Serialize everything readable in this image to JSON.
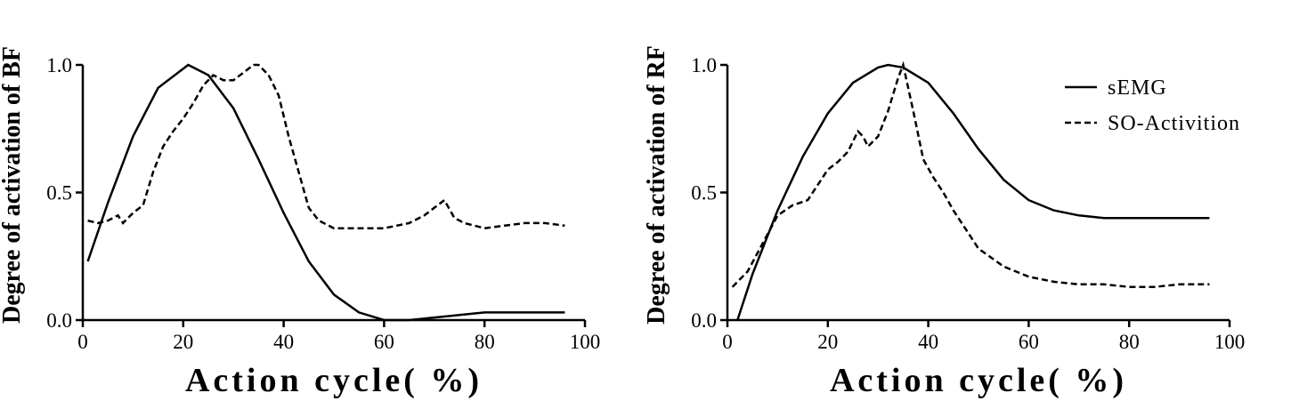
{
  "chart_data": [
    {
      "type": "line",
      "xlabel": "Action cycle( %)",
      "ylabel": "Degree of activation of BF",
      "xlim": [
        0,
        100
      ],
      "ylim": [
        0,
        1
      ],
      "x_ticks": [
        "0",
        "20",
        "40",
        "60",
        "80",
        "100"
      ],
      "y_ticks": [
        "0.0",
        "0.5",
        "1.0"
      ],
      "series": [
        {
          "name": "sEMG",
          "style": "solid",
          "x": [
            1,
            5,
            10,
            15,
            21,
            25,
            30,
            35,
            40,
            45,
            50,
            55,
            60,
            65,
            70,
            75,
            80,
            85,
            90,
            96
          ],
          "y": [
            0.23,
            0.46,
            0.72,
            0.91,
            1.0,
            0.96,
            0.83,
            0.63,
            0.42,
            0.23,
            0.1,
            0.03,
            0.0,
            0.0,
            0.01,
            0.02,
            0.03,
            0.03,
            0.03,
            0.03
          ]
        },
        {
          "name": "SO-Activition",
          "style": "dashed",
          "x": [
            1,
            3,
            5,
            7,
            8,
            10,
            12,
            14,
            16,
            18,
            20,
            22,
            24,
            26,
            28,
            30,
            32,
            34,
            35,
            37,
            39,
            41,
            43,
            45,
            47,
            50,
            55,
            60,
            65,
            68,
            72,
            74,
            76,
            80,
            84,
            88,
            92,
            96
          ],
          "y": [
            0.39,
            0.38,
            0.39,
            0.41,
            0.38,
            0.42,
            0.45,
            0.58,
            0.68,
            0.74,
            0.79,
            0.85,
            0.92,
            0.96,
            0.94,
            0.94,
            0.97,
            1.0,
            1.0,
            0.96,
            0.88,
            0.72,
            0.58,
            0.44,
            0.39,
            0.36,
            0.36,
            0.36,
            0.38,
            0.41,
            0.47,
            0.4,
            0.38,
            0.36,
            0.37,
            0.38,
            0.38,
            0.37
          ]
        }
      ]
    },
    {
      "type": "line",
      "xlabel": "Action cycle( %)",
      "ylabel": "Degree of activation of RF",
      "xlim": [
        0,
        100
      ],
      "ylim": [
        0,
        1
      ],
      "x_ticks": [
        "0",
        "20",
        "40",
        "60",
        "80",
        "100"
      ],
      "y_ticks": [
        "0.0",
        "0.5",
        "1.0"
      ],
      "legend": {
        "position": "top-right",
        "entries": [
          {
            "label": "sEMG",
            "style": "solid"
          },
          {
            "label": "SO-Activition",
            "style": "dashed"
          }
        ]
      },
      "series": [
        {
          "name": "sEMG",
          "style": "solid",
          "x": [
            2,
            5,
            10,
            15,
            20,
            25,
            30,
            32,
            35,
            40,
            45,
            50,
            55,
            60,
            65,
            70,
            75,
            80,
            85,
            90,
            96
          ],
          "y": [
            0.0,
            0.18,
            0.43,
            0.64,
            0.81,
            0.93,
            0.99,
            1.0,
            0.99,
            0.93,
            0.81,
            0.67,
            0.55,
            0.47,
            0.43,
            0.41,
            0.4,
            0.4,
            0.4,
            0.4,
            0.4
          ]
        },
        {
          "name": "SO-Activition",
          "style": "dashed",
          "x": [
            1,
            4,
            7,
            10,
            13,
            16,
            18,
            20,
            22,
            24,
            26,
            27,
            28,
            29,
            30,
            32,
            34,
            35,
            37,
            39,
            41,
            43,
            45,
            50,
            55,
            60,
            65,
            70,
            75,
            80,
            85,
            90,
            96
          ],
          "y": [
            0.13,
            0.19,
            0.3,
            0.41,
            0.45,
            0.47,
            0.53,
            0.59,
            0.62,
            0.66,
            0.74,
            0.72,
            0.68,
            0.7,
            0.72,
            0.82,
            0.95,
            1.0,
            0.82,
            0.63,
            0.56,
            0.5,
            0.43,
            0.28,
            0.21,
            0.17,
            0.15,
            0.14,
            0.14,
            0.13,
            0.13,
            0.14,
            0.14
          ]
        }
      ]
    }
  ]
}
